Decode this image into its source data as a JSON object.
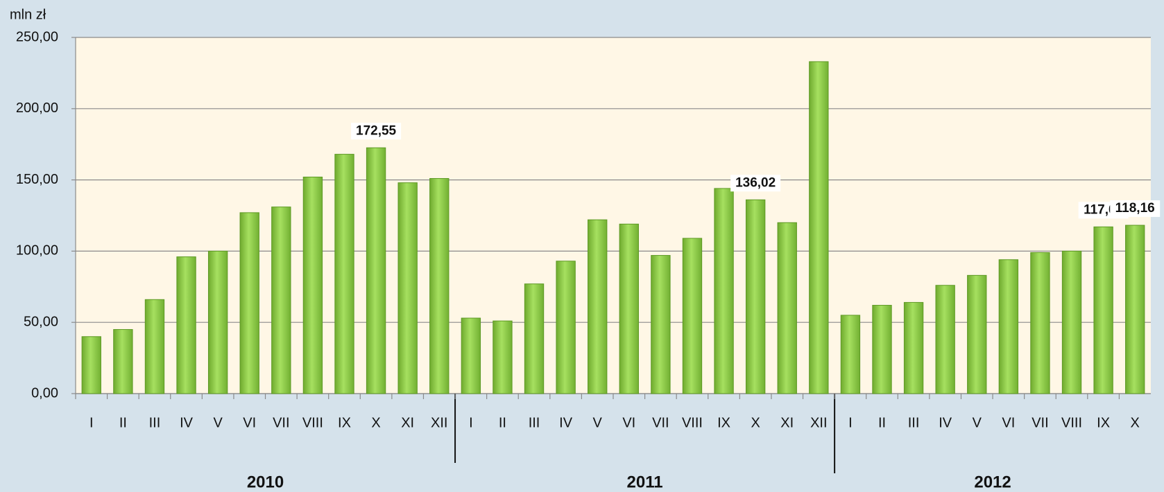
{
  "chart_data": {
    "type": "bar",
    "y_label": "mln zł",
    "groups": [
      {
        "label": "2010",
        "categories": [
          "I",
          "II",
          "III",
          "IV",
          "V",
          "VI",
          "VII",
          "VIII",
          "IX",
          "X",
          "XI",
          "XII"
        ]
      },
      {
        "label": "2011",
        "categories": [
          "I",
          "II",
          "III",
          "IV",
          "V",
          "VI",
          "VII",
          "VIII",
          "IX",
          "X",
          "XI",
          "XII"
        ]
      },
      {
        "label": "2012",
        "categories": [
          "I",
          "II",
          "III",
          "IV",
          "V",
          "VI",
          "VII",
          "VIII",
          "IX",
          "X"
        ]
      }
    ],
    "values": [
      40,
      45,
      66,
      96,
      100,
      127,
      131,
      152,
      168,
      172.55,
      148,
      151,
      53,
      51,
      77,
      93,
      122,
      119,
      97,
      109,
      144,
      136.02,
      120,
      233,
      55,
      62,
      64,
      76,
      83,
      94,
      99,
      100,
      117.03,
      118.16
    ],
    "value_labels": [
      null,
      null,
      null,
      null,
      null,
      null,
      null,
      null,
      null,
      "172,55",
      null,
      null,
      null,
      null,
      null,
      null,
      null,
      null,
      null,
      null,
      null,
      "136,02",
      null,
      null,
      null,
      null,
      null,
      null,
      null,
      null,
      null,
      null,
      "117,03",
      "118,16"
    ],
    "color": "#8fd14f",
    "ylim": [
      0,
      250
    ],
    "yticks": [
      {
        "value": 0,
        "label": "0,00"
      },
      {
        "value": 50,
        "label": "50,00"
      },
      {
        "value": 100,
        "label": "100,00"
      },
      {
        "value": 150,
        "label": "150,00"
      },
      {
        "value": 200,
        "label": "200,00"
      },
      {
        "value": 250,
        "label": "250,00"
      }
    ],
    "grid": true
  }
}
